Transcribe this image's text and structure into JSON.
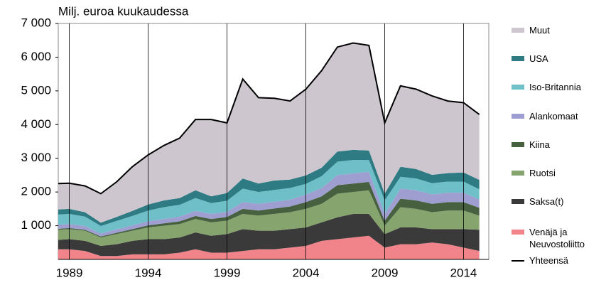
{
  "chart_data": {
    "type": "stacked-area",
    "title": "Milj. euroa kuukaudessa",
    "x": [
      1988.3,
      1989,
      1990,
      1991,
      1992,
      1993,
      1994,
      1995,
      1996,
      1997,
      1998,
      1999,
      2000,
      2001,
      2002,
      2003,
      2004,
      2005,
      2006,
      2007,
      2008,
      2009,
      2010,
      2011,
      2012,
      2013,
      2014,
      2015
    ],
    "xlim": [
      1988.3,
      2015.6
    ],
    "xticks": [
      1989,
      1994,
      1999,
      2004,
      2009,
      2014
    ],
    "ylim": [
      0,
      7000
    ],
    "yticks": [
      {
        "value": 1000,
        "label": "1 000"
      },
      {
        "value": 2000,
        "label": "2 000"
      },
      {
        "value": 3000,
        "label": "3 000"
      },
      {
        "value": 4000,
        "label": "4 000"
      },
      {
        "value": 5000,
        "label": "5 000"
      },
      {
        "value": 6000,
        "label": "6 000"
      },
      {
        "value": 7000,
        "label": "7 000"
      }
    ],
    "grid": "x",
    "stacked": true,
    "series": [
      {
        "name": "Venäjä ja Neuvostoliitto",
        "color": "#f0848a",
        "values": [
          300,
          300,
          250,
          100,
          100,
          150,
          150,
          150,
          200,
          300,
          200,
          200,
          250,
          300,
          300,
          350,
          400,
          550,
          600,
          650,
          700,
          350,
          450,
          450,
          500,
          450,
          350,
          250
        ]
      },
      {
        "name": "Saksa(t)",
        "color": "#3a3a3a",
        "values": [
          280,
          300,
          300,
          300,
          350,
          400,
          450,
          450,
          450,
          500,
          500,
          550,
          650,
          550,
          550,
          550,
          550,
          550,
          650,
          700,
          650,
          400,
          500,
          500,
          400,
          450,
          550,
          630
        ]
      },
      {
        "name": "Ruotsi",
        "color": "#86a46d",
        "values": [
          300,
          300,
          300,
          250,
          300,
          300,
          350,
          400,
          400,
          400,
          400,
          400,
          450,
          450,
          500,
          500,
          550,
          550,
          700,
          650,
          700,
          250,
          600,
          550,
          500,
          550,
          550,
          420
        ]
      },
      {
        "name": "Kiina",
        "color": "#47603f",
        "values": [
          30,
          30,
          30,
          30,
          40,
          50,
          60,
          70,
          80,
          90,
          100,
          110,
          150,
          150,
          160,
          170,
          200,
          220,
          250,
          250,
          250,
          150,
          250,
          250,
          250,
          250,
          250,
          230
        ]
      },
      {
        "name": "Alankomaat",
        "color": "#9e9fd0",
        "values": [
          120,
          120,
          110,
          90,
          100,
          110,
          120,
          130,
          140,
          150,
          150,
          150,
          200,
          200,
          200,
          200,
          220,
          250,
          300,
          300,
          300,
          200,
          300,
          300,
          280,
          280,
          280,
          250
        ]
      },
      {
        "name": "Iso-Britannia",
        "color": "#6fbfc9",
        "values": [
          300,
          300,
          280,
          220,
          250,
          280,
          320,
          350,
          350,
          380,
          320,
          330,
          400,
          350,
          350,
          350,
          320,
          350,
          400,
          400,
          350,
          400,
          350,
          350,
          330,
          330,
          330,
          300
        ]
      },
      {
        "name": "USA",
        "color": "#2e7b84",
        "values": [
          150,
          150,
          130,
          100,
          120,
          150,
          180,
          200,
          200,
          230,
          200,
          230,
          300,
          250,
          280,
          250,
          250,
          250,
          300,
          300,
          280,
          200,
          300,
          280,
          250,
          250,
          270,
          280
        ]
      },
      {
        "name": "Muut",
        "color": "#cdc6cf",
        "values": [
          770,
          760,
          780,
          860,
          1040,
          1310,
          1470,
          1630,
          1780,
          2100,
          2280,
          2080,
          2950,
          2550,
          2440,
          2330,
          2560,
          2880,
          3100,
          3170,
          3120,
          2100,
          2400,
          2370,
          2340,
          2140,
          2070,
          1940
        ]
      },
      {
        "name": "Yhteensä",
        "color": "#000000",
        "type": "line",
        "values": [
          2250,
          2260,
          2180,
          1950,
          2300,
          2750,
          3100,
          3380,
          3600,
          4150,
          4150,
          4050,
          5350,
          4800,
          4780,
          4700,
          5050,
          5600,
          6300,
          6420,
          6350,
          4050,
          5150,
          5050,
          4850,
          4700,
          4650,
          4300
        ]
      }
    ]
  }
}
